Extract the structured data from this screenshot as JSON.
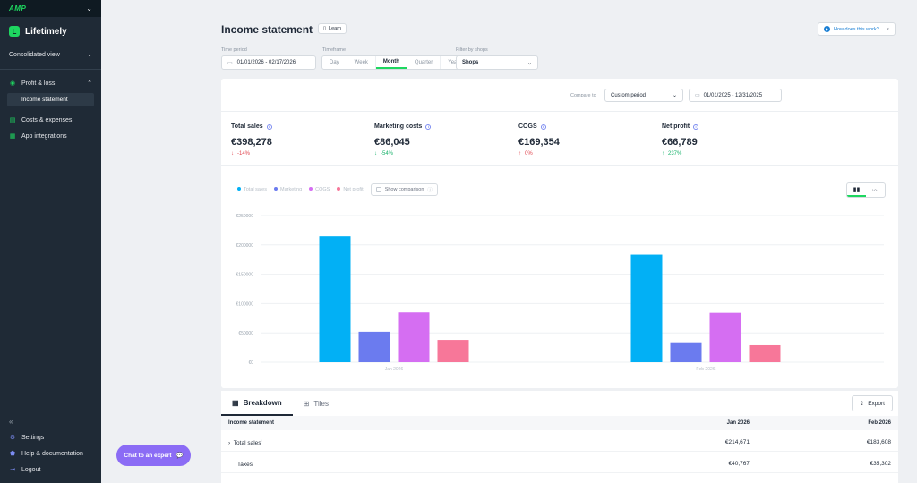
{
  "brand": {
    "top_logo": "AMP",
    "app_name": "Lifetimely",
    "app_logo_letter": "L"
  },
  "sidebar": {
    "consolidated": "Consolidated view",
    "items": [
      {
        "label": "Profit & loss",
        "icon": "check-circle-icon"
      },
      {
        "label": "Costs & expenses",
        "icon": "receipt-icon"
      },
      {
        "label": "App integrations",
        "icon": "grid-icon"
      }
    ],
    "sub_item": "Income statement",
    "bottom": [
      {
        "label": "Settings",
        "icon": "gear-icon"
      },
      {
        "label": "Help & documentation",
        "icon": "help-icon"
      },
      {
        "label": "Logout",
        "icon": "logout-icon"
      }
    ]
  },
  "header": {
    "title": "Income statement",
    "learn": "Learn",
    "how": "How does this work?"
  },
  "filters": {
    "time_period_label": "Time period",
    "time_period": "01/01/2026 - 02/17/2026",
    "timeframe_label": "Timeframe",
    "timeframe_options": [
      "Day",
      "Week",
      "Month",
      "Quarter",
      "Year"
    ],
    "timeframe_active": "Month",
    "shops_label": "Filter by shops",
    "shops_value": "Shops"
  },
  "compare": {
    "label": "Compare to",
    "select": "Custom period",
    "range": "01/01/2025 - 12/31/2025"
  },
  "kpis": [
    {
      "name": "Total sales",
      "value": "€398,278",
      "change": "-14%",
      "dir": "neg"
    },
    {
      "name": "Marketing costs",
      "value": "€86,045",
      "change": "-54%",
      "dir": "pos"
    },
    {
      "name": "COGS",
      "value": "€169,354",
      "change": "0%",
      "dir": "neg"
    },
    {
      "name": "Net profit",
      "value": "€66,789",
      "change": "237%",
      "dir": "pos"
    }
  ],
  "legend": {
    "show_comparison": "Show comparison"
  },
  "chart_data": {
    "type": "bar",
    "categories": [
      "Jan 2026",
      "Feb 2026"
    ],
    "series": [
      {
        "name": "Total sales",
        "color": "#02b0f5",
        "values": [
          214671,
          183608
        ]
      },
      {
        "name": "Marketing",
        "color": "#6b7bef",
        "values": [
          52000,
          34000
        ]
      },
      {
        "name": "COGS",
        "color": "#d56ef2",
        "values": [
          85000,
          84354
        ]
      },
      {
        "name": "Net profit",
        "color": "#f77799",
        "values": [
          38000,
          29000
        ]
      }
    ],
    "ylim": [
      0,
      250000
    ],
    "yticks": [
      "€0",
      "€50000",
      "€100000",
      "€150000",
      "€200000",
      "€250000"
    ],
    "grid": true
  },
  "breakdown": {
    "tabs": [
      "Breakdown",
      "Tiles"
    ],
    "export": "Export",
    "columns": [
      "Income statement",
      "Jan 2026",
      "Feb 2026"
    ],
    "rows": [
      {
        "label": "Total sales",
        "jan": "€214,671",
        "feb": "€183,608"
      },
      {
        "label": "Taxes",
        "jan": "€40,767",
        "feb": "€35,302"
      }
    ]
  },
  "chat": {
    "label": "Chat to an expert"
  }
}
